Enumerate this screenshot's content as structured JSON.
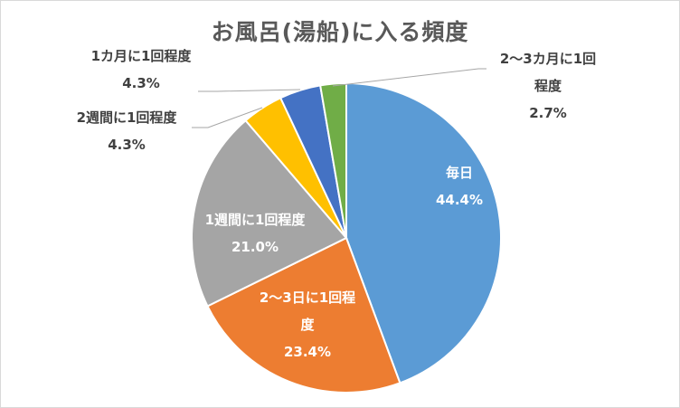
{
  "chart_data": {
    "type": "pie",
    "title": "お風呂(湯船)に入る頻度",
    "start_angle_deg": 0,
    "direction": "clockwise",
    "slices": [
      {
        "label_lines": [
          "毎日"
        ],
        "value": 44.4,
        "value_label": "44.4%",
        "color": "#5b9bd5"
      },
      {
        "label_lines": [
          "2〜3日に1回程",
          "度"
        ],
        "value": 23.4,
        "value_label": "23.4%",
        "color": "#ed7d31"
      },
      {
        "label_lines": [
          "1週間に1回程度"
        ],
        "value": 21.0,
        "value_label": "21.0%",
        "color": "#a5a5a5"
      },
      {
        "label_lines": [
          "2週間に1回程度"
        ],
        "value": 4.3,
        "value_label": "4.3%",
        "color": "#ffc000"
      },
      {
        "label_lines": [
          "1カ月に1回程度"
        ],
        "value": 4.3,
        "value_label": "4.3%",
        "color": "#4472c4"
      },
      {
        "label_lines": [
          "2〜3カ月に1回",
          "程度"
        ],
        "value": 2.7,
        "value_label": "2.7%",
        "color": "#70ad47"
      }
    ],
    "label_colors": {
      "inside": "#ffffff",
      "outside": "#404040"
    }
  }
}
